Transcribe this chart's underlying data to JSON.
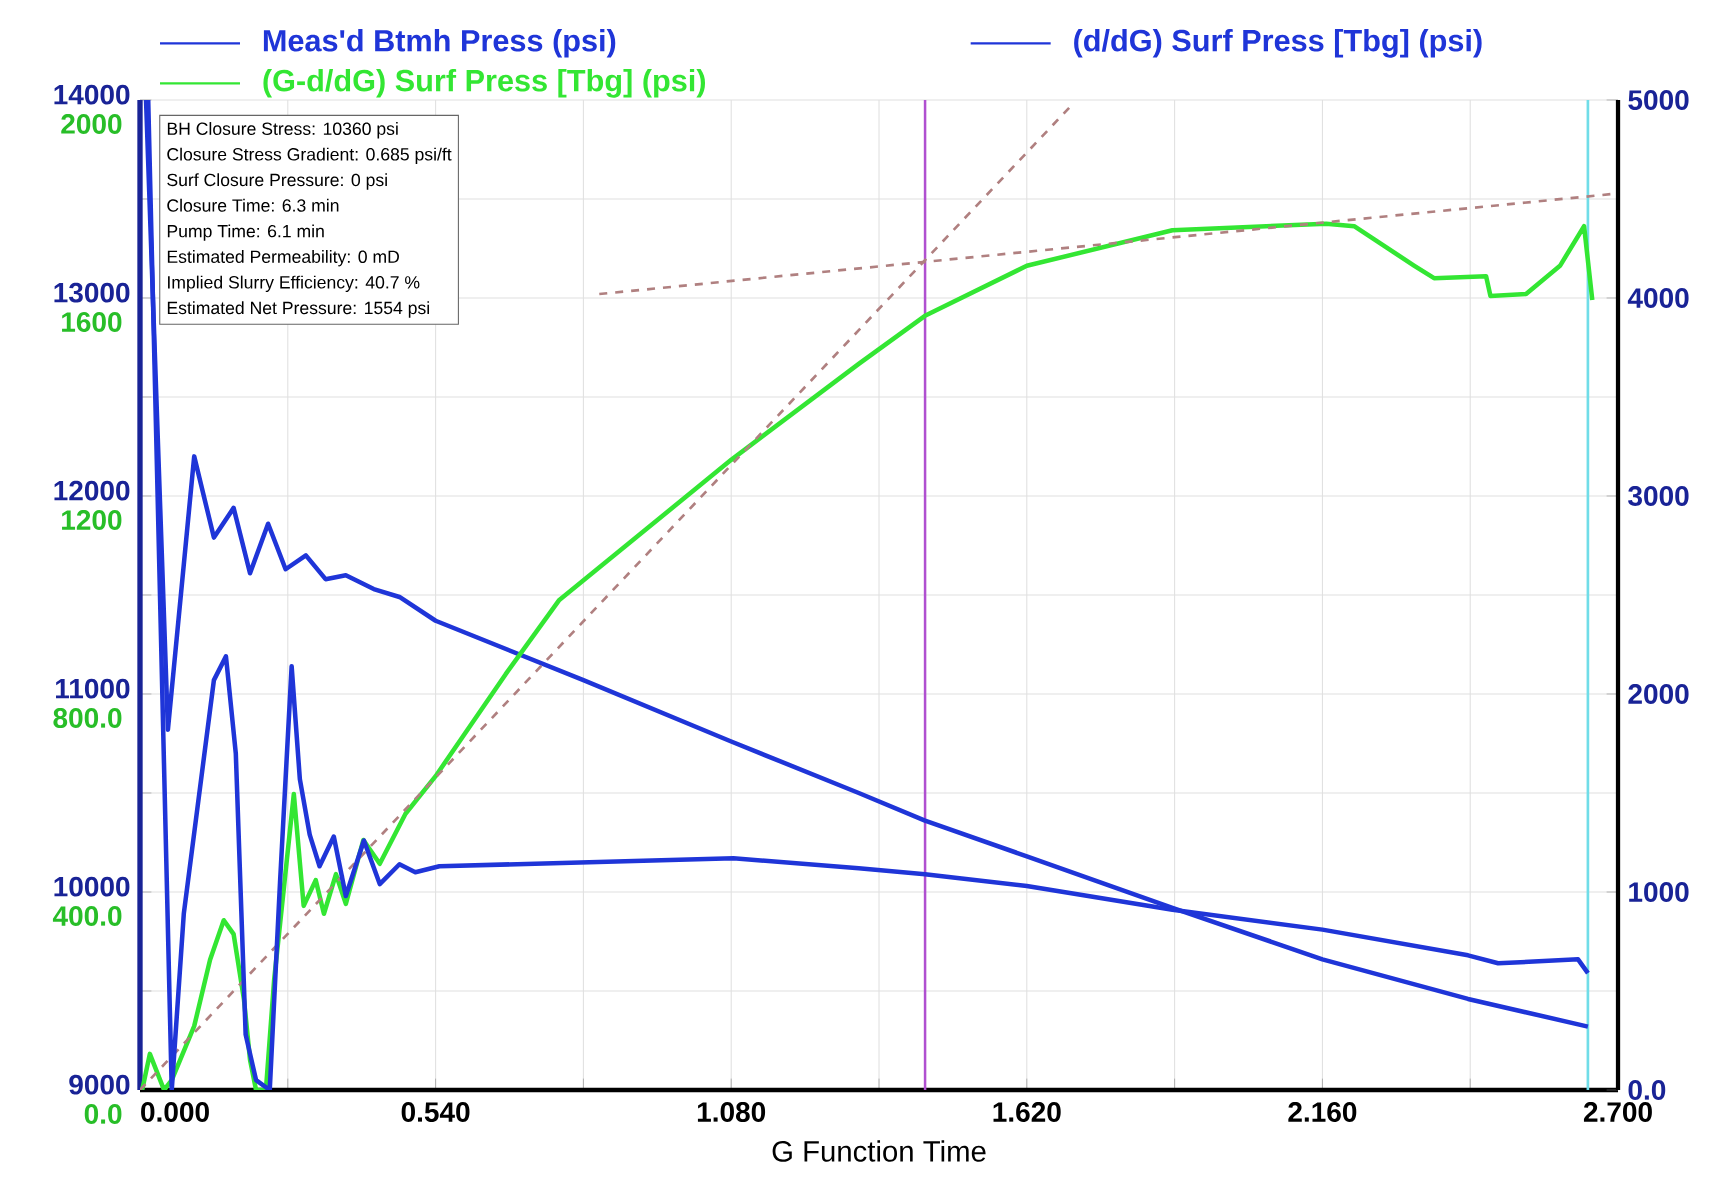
{
  "chart_data": {
    "type": "line",
    "xlabel": "G Function Time",
    "xlim": [
      0,
      2.7
    ],
    "xticks": [
      {
        "value": 0,
        "label": "0.000"
      },
      {
        "value": 0.27,
        "label": null
      },
      {
        "value": 0.54,
        "label": "0.540"
      },
      {
        "value": 0.81,
        "label": null
      },
      {
        "value": 1.08,
        "label": "1.080"
      },
      {
        "value": 1.35,
        "label": null
      },
      {
        "value": 1.62,
        "label": "1.620"
      },
      {
        "value": 1.89,
        "label": null
      },
      {
        "value": 2.16,
        "label": "2.160"
      },
      {
        "value": 2.43,
        "label": null
      },
      {
        "value": 2.7,
        "label": "2.700"
      }
    ],
    "ylim": [
      9000,
      14000
    ],
    "yticks": [
      9000,
      {
        "value": 9500,
        "label": null
      },
      10000,
      {
        "value": 10500,
        "label": null
      },
      11000,
      {
        "value": 11500,
        "label": null
      },
      12000,
      {
        "value": 12500,
        "label": null
      },
      13000,
      {
        "value": 13500,
        "label": null
      },
      14000
    ],
    "y2lim": [
      0,
      5000
    ],
    "y2ticks": [
      {
        "value": 0,
        "label": "0.0"
      },
      1000,
      2000,
      3000,
      4000,
      5000
    ],
    "y3lim": [
      0,
      2000
    ],
    "y3ticks": [
      {
        "value": 0,
        "label": "0.0"
      },
      {
        "value": 400,
        "label": "400.0"
      },
      {
        "value": 800,
        "label": "800.0"
      },
      1200,
      1600,
      2000
    ],
    "grid": true,
    "legend": "top",
    "series": [
      {
        "name": "Meas'd Btmh Press (psi)",
        "color": "#1f35d8",
        "axis": "y",
        "x": [
          0.011,
          0.051,
          0.099,
          0.135,
          0.171,
          0.201,
          0.234,
          0.266,
          0.303,
          0.339,
          0.376,
          0.427,
          0.474,
          0.54,
          0.81,
          1.08,
          1.313,
          1.434,
          1.62,
          1.886,
          2.16,
          2.426,
          2.645
        ],
        "values": [
          14000,
          10820,
          12200,
          11790,
          11940,
          11610,
          11860,
          11630,
          11700,
          11580,
          11600,
          11530,
          11490,
          11370,
          11070,
          10760,
          10500,
          10360,
          10180,
          9920,
          9660,
          9460,
          9320
        ]
      },
      {
        "name": "(G-d/dG) Surf Press [Tbg] (psi)",
        "color": "#33e633",
        "axis": "y3",
        "x": [
          0.004,
          0.018,
          0.044,
          0.058,
          0.099,
          0.128,
          0.153,
          0.171,
          0.19,
          0.201,
          0.212,
          0.23,
          0.245,
          0.281,
          0.299,
          0.321,
          0.336,
          0.358,
          0.376,
          0.408,
          0.438,
          0.485,
          0.54,
          0.668,
          0.766,
          1.08,
          1.313,
          1.434,
          1.62,
          1.886,
          2.167,
          2.218,
          2.328,
          2.364,
          2.459,
          2.467,
          2.532,
          2.594,
          2.638,
          2.653
        ],
        "values": [
          0,
          73,
          0,
          20,
          129,
          263,
          343,
          315,
          182,
          61,
          0,
          0,
          222,
          598,
          372,
          424,
          356,
          436,
          376,
          505,
          457,
          558,
          634,
          840,
          990,
          1273,
          1467,
          1564,
          1665,
          1737,
          1750,
          1745,
          1665,
          1640,
          1644,
          1604,
          1608,
          1665,
          1745,
          1596
        ]
      },
      {
        "name": "(d/dG) Surf Press [Tbg] (psi)",
        "color": "#1f35d8",
        "axis": "y2",
        "x": [
          0.015,
          0.058,
          0.08,
          0.135,
          0.157,
          0.175,
          0.193,
          0.212,
          0.237,
          0.256,
          0.277,
          0.292,
          0.31,
          0.328,
          0.354,
          0.376,
          0.409,
          0.438,
          0.474,
          0.503,
          0.547,
          1.084,
          1.313,
          1.434,
          1.62,
          1.886,
          2.16,
          2.426,
          2.481,
          2.627,
          2.645
        ],
        "values": [
          5000,
          0,
          890,
          2070,
          2190,
          1700,
          280,
          50,
          0,
          1060,
          2140,
          1570,
          1290,
          1130,
          1280,
          980,
          1260,
          1040,
          1140,
          1100,
          1130,
          1170,
          1120,
          1090,
          1030,
          910,
          810,
          680,
          640,
          660,
          590
        ]
      },
      {
        "color": "#b08080",
        "axis": "y3",
        "line_style": "dashed",
        "x": [
          0,
          1.704
        ],
        "values": [
          0,
          1992
        ]
      },
      {
        "color": "#b08080",
        "axis": "y3",
        "line_style": "dashed",
        "x": [
          0.839,
          2.689
        ],
        "values": [
          1608,
          1810
        ]
      }
    ],
    "ref_lines": [
      {
        "axis": "x",
        "value": 1.434,
        "color": "#b050d0"
      },
      {
        "axis": "x",
        "value": 2.645,
        "color": "#70dde8"
      }
    ],
    "annotations": [
      "BH Closure Stress: 10360 psi",
      "Closure Stress Gradient: 0.685 psi/ft",
      "Surf Closure Pressure: 0 psi",
      "Closure Time: 6.3 min",
      "Pump Time: 6.1 min",
      "Estimated Permeability: 0 mD",
      "Implied Slurry Efficiency: 40.7 %",
      "Estimated Net Pressure: 1554 psi"
    ]
  }
}
